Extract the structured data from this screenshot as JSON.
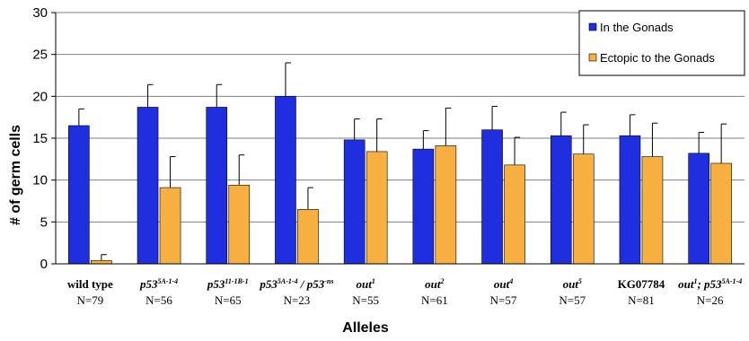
{
  "chart_data": {
    "type": "bar",
    "title": "",
    "xlabel": "Alleles",
    "ylabel": "# of germ cells",
    "ylim": [
      0,
      30
    ],
    "yticks": [
      "0",
      "5",
      "10",
      "15",
      "20",
      "25",
      "30"
    ],
    "grid": true,
    "legend_position": "top-right",
    "categories": [
      {
        "base": "wild type",
        "sup": "",
        "rest": "",
        "italic": false,
        "n": "N=79"
      },
      {
        "base": "p53",
        "sup": "5A-1-4",
        "rest": "",
        "italic": true,
        "n": "N=56"
      },
      {
        "base": "p53",
        "sup": "11-1B-1",
        "rest": "",
        "italic": true,
        "n": "N=65"
      },
      {
        "base": "p53",
        "sup": "5A-1-4",
        "rest": " / p53",
        "rest_sup": "-ns",
        "italic": true,
        "n": "N=23"
      },
      {
        "base": "out",
        "sup": "1",
        "rest": "",
        "italic": true,
        "n": "N=55"
      },
      {
        "base": "out",
        "sup": "2",
        "rest": "",
        "italic": true,
        "n": "N=61"
      },
      {
        "base": "out",
        "sup": "4",
        "rest": "",
        "italic": true,
        "n": "N=57"
      },
      {
        "base": "out",
        "sup": "5",
        "rest": "",
        "italic": true,
        "n": "N=57"
      },
      {
        "base": "KG07784",
        "sup": "",
        "rest": "",
        "italic": false,
        "n": "N=81"
      },
      {
        "base": "out",
        "sup": "1",
        "rest": "; p53",
        "rest_sup": "5A-1-4",
        "italic": true,
        "n": "N=26"
      }
    ],
    "series": [
      {
        "name": "In the Gonads",
        "color": "#1f2fe0",
        "values": [
          16.5,
          18.7,
          18.7,
          20.0,
          14.8,
          13.7,
          16.0,
          15.3,
          15.3,
          13.2
        ],
        "errors": [
          2.0,
          2.7,
          2.7,
          4.0,
          2.5,
          2.2,
          2.8,
          2.8,
          2.5,
          2.5
        ]
      },
      {
        "name": "Ectopic to the Gonads",
        "color": "#f9b042",
        "values": [
          0.4,
          9.1,
          9.4,
          6.5,
          13.4,
          14.1,
          11.8,
          13.1,
          12.8,
          12.0
        ],
        "errors": [
          0.7,
          3.7,
          3.6,
          2.6,
          3.9,
          4.5,
          3.3,
          3.5,
          4.0,
          4.7
        ]
      }
    ]
  }
}
